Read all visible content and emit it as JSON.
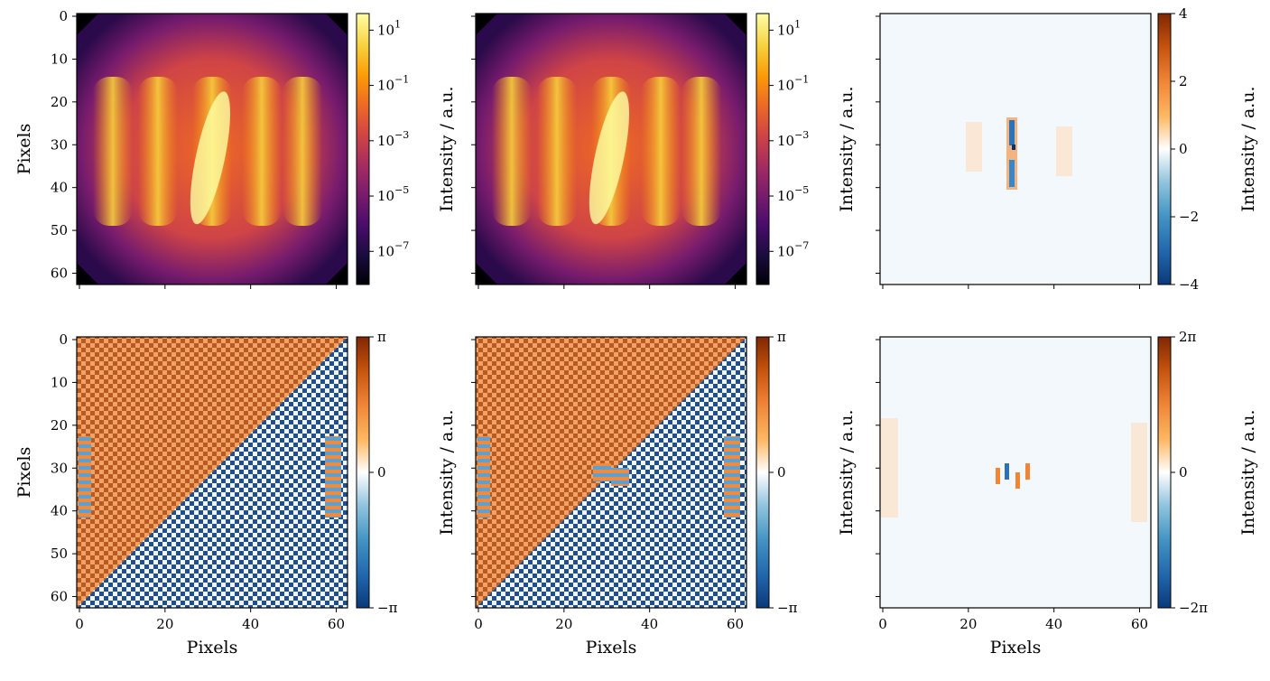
{
  "chart_data": [
    {
      "type": "heatmap",
      "panel": "intensity-log",
      "colormap": "inferno",
      "scale": "log",
      "xlim": [
        0,
        62
      ],
      "ylim": [
        62,
        0
      ],
      "ylabel": "Pixels",
      "yticks": [
        "0",
        "10",
        "20",
        "30",
        "40",
        "50",
        "60"
      ],
      "colorbar": {
        "ticks": [
          "10",
          "10",
          "10",
          "10",
          "10"
        ],
        "exponents": [
          "1",
          "−1",
          "−3",
          "−5",
          "−7"
        ],
        "values": [
          1,
          -1,
          -3,
          -5,
          -7
        ],
        "range": [
          -8.2,
          1.6
        ],
        "label": "Intensity / a.u."
      }
    },
    {
      "type": "heatmap",
      "panel": "intensity-log-reconstructed",
      "colormap": "inferno",
      "scale": "log",
      "xlim": [
        0,
        62
      ],
      "ylim": [
        62,
        0
      ],
      "colorbar": {
        "ticks": [
          "10",
          "10",
          "10",
          "10",
          "10"
        ],
        "exponents": [
          "1",
          "−1",
          "−3",
          "−5",
          "−7"
        ],
        "values": [
          1,
          -1,
          -3,
          -5,
          -7
        ],
        "range": [
          -8.2,
          1.6
        ],
        "label": "Intensity / a.u."
      }
    },
    {
      "type": "heatmap",
      "panel": "intensity-difference",
      "colormap": "diverging-blue-orange",
      "xlim": [
        0,
        62
      ],
      "ylim": [
        62,
        0
      ],
      "colorbar": {
        "ticks": [
          "4",
          "2",
          "0",
          "−2",
          "−4"
        ],
        "values": [
          4,
          2,
          0,
          -2,
          -4
        ],
        "range": [
          -4,
          4
        ],
        "label": "Intensity / a.u."
      }
    },
    {
      "type": "heatmap",
      "panel": "phase",
      "colormap": "diverging-blue-orange",
      "xlim": [
        0,
        62
      ],
      "ylim": [
        62,
        0
      ],
      "xlabel": "Pixels",
      "ylabel": "Pixels",
      "xticks": [
        "0",
        "20",
        "40",
        "60"
      ],
      "yticks": [
        "0",
        "10",
        "20",
        "30",
        "40",
        "50",
        "60"
      ],
      "colorbar": {
        "ticks": [
          "π",
          "0",
          "−π"
        ],
        "values": [
          3.1416,
          0,
          -3.1416
        ],
        "range": [
          -3.1416,
          3.1416
        ],
        "label": "Intensity / a.u."
      }
    },
    {
      "type": "heatmap",
      "panel": "phase-reconstructed",
      "colormap": "diverging-blue-orange",
      "xlim": [
        0,
        62
      ],
      "ylim": [
        62,
        0
      ],
      "xlabel": "Pixels",
      "xticks": [
        "0",
        "20",
        "40",
        "60"
      ],
      "colorbar": {
        "ticks": [
          "π",
          "0",
          "−π"
        ],
        "values": [
          3.1416,
          0,
          -3.1416
        ],
        "range": [
          -3.1416,
          3.1416
        ],
        "label": "Intensity / a.u."
      }
    },
    {
      "type": "heatmap",
      "panel": "phase-difference",
      "colormap": "diverging-blue-orange",
      "xlim": [
        0,
        62
      ],
      "ylim": [
        62,
        0
      ],
      "xlabel": "Pixels",
      "xticks": [
        "0",
        "20",
        "40",
        "60"
      ],
      "colorbar": {
        "ticks": [
          "2π",
          "0",
          "−2π"
        ],
        "values": [
          6.2832,
          0,
          -6.2832
        ],
        "range": [
          -6.2832,
          6.2832
        ],
        "label": "Intensity / a.u."
      }
    }
  ],
  "colors": {
    "inferno": [
      "#000004",
      "#1b0c41",
      "#4a0c6b",
      "#781c6d",
      "#a52c60",
      "#cf4446",
      "#ed6925",
      "#fb9b06",
      "#f7d13d",
      "#fcffa4"
    ],
    "diverging": [
      "#0a3a7a",
      "#2166ac",
      "#4393c3",
      "#92c5de",
      "#ffffff",
      "#fdb863",
      "#f08536",
      "#c4520d",
      "#7f2704"
    ]
  }
}
